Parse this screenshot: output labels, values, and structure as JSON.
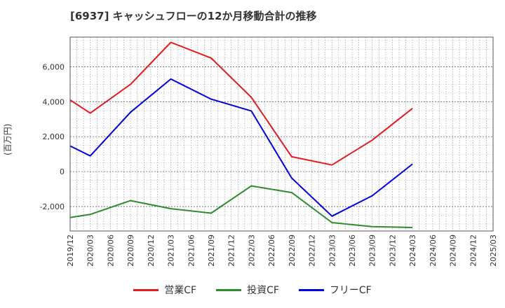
{
  "chart_data": {
    "type": "line",
    "title": "[6937]  キャッシュフローの12か月移動合計の推移",
    "ylabel": "(百万円)",
    "xlabel": "",
    "ylim": [
      -3400,
      7700
    ],
    "yticks": [
      -2000,
      0,
      2000,
      4000,
      6000
    ],
    "ytick_labels": [
      "-2,000",
      "0",
      "2,000",
      "4,000",
      "6,000"
    ],
    "x_ticks": [
      "2019/12",
      "2020/03",
      "2020/06",
      "2020/09",
      "2020/12",
      "2021/03",
      "2021/06",
      "2021/09",
      "2021/12",
      "2022/03",
      "2022/06",
      "2022/09",
      "2022/12",
      "2023/03",
      "2023/06",
      "2023/09",
      "2023/12",
      "2024/03",
      "2024/06",
      "2024/09",
      "2024/12",
      "2025/03"
    ],
    "grid": true,
    "legend_position": "bottom",
    "series": [
      {
        "name": "営業CF",
        "color": "#e41a1c",
        "points": [
          [
            "2019/12",
            4100
          ],
          [
            "2020/03",
            3350
          ],
          [
            "2020/09",
            5000
          ],
          [
            "2021/03",
            7400
          ],
          [
            "2021/09",
            6500
          ],
          [
            "2022/03",
            4250
          ],
          [
            "2022/09",
            850
          ],
          [
            "2023/03",
            380
          ],
          [
            "2023/09",
            1800
          ],
          [
            "2024/03",
            3620
          ]
        ]
      },
      {
        "name": "投資CF",
        "color": "#2e8b2e",
        "points": [
          [
            "2019/12",
            -2630
          ],
          [
            "2020/03",
            -2450
          ],
          [
            "2020/09",
            -1660
          ],
          [
            "2021/03",
            -2120
          ],
          [
            "2021/09",
            -2380
          ],
          [
            "2022/03",
            -820
          ],
          [
            "2022/09",
            -1200
          ],
          [
            "2023/03",
            -2920
          ],
          [
            "2023/09",
            -3150
          ],
          [
            "2024/03",
            -3200
          ]
        ]
      },
      {
        "name": "フリーCF",
        "color": "#0000dd",
        "points": [
          [
            "2019/12",
            1470
          ],
          [
            "2020/03",
            900
          ],
          [
            "2020/09",
            3400
          ],
          [
            "2021/03",
            5300
          ],
          [
            "2021/09",
            4150
          ],
          [
            "2022/03",
            3470
          ],
          [
            "2022/09",
            -370
          ],
          [
            "2023/03",
            -2550
          ],
          [
            "2023/09",
            -1380
          ],
          [
            "2024/03",
            430
          ]
        ]
      }
    ]
  }
}
